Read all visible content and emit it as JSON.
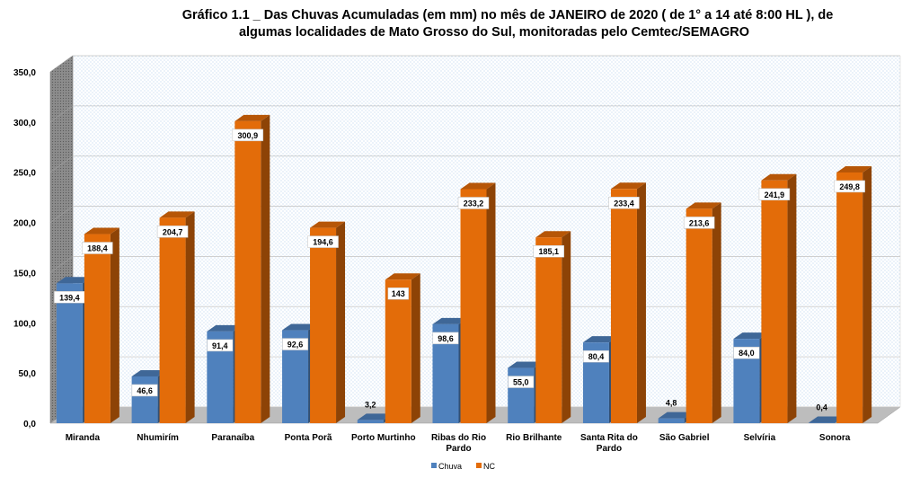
{
  "chart_data": {
    "type": "bar",
    "title_lines": [
      "Gráfico 1.1 _ Das Chuvas Acumuladas (em mm) no mês de JANEIRO de 2020 ( de 1° a  14  até  8:00 HL  ),  de",
      "algumas localidades de Mato Grosso do Sul, monitoradas pelo Cemtec/SEMAGRO"
    ],
    "categories": [
      [
        "Miranda"
      ],
      [
        "Nhumirím"
      ],
      [
        "Paranaíba"
      ],
      [
        "Ponta Porã"
      ],
      [
        "Porto Murtinho"
      ],
      [
        "Ribas do Rio",
        "Pardo"
      ],
      [
        "Rio Brilhante"
      ],
      [
        "Santa Rita do",
        "Pardo"
      ],
      [
        "São Gabriel"
      ],
      [
        "Selvíria"
      ],
      [
        "Sonora"
      ]
    ],
    "series": [
      {
        "name": "Chuva",
        "color": "#4f81bd",
        "values": [
          139.4,
          46.6,
          91.4,
          92.6,
          3.2,
          98.6,
          55.0,
          80.4,
          4.8,
          84.0,
          0.4
        ],
        "labels": [
          "139,4",
          "46,6",
          "91,4",
          "92,6",
          "3,2",
          "98,6",
          "55,0",
          "80,4",
          "4,8",
          "84,0",
          "0,4"
        ]
      },
      {
        "name": "NC",
        "color": "#e36c09",
        "values": [
          188.4,
          204.7,
          300.9,
          194.6,
          143,
          233.2,
          185.1,
          233.4,
          213.6,
          241.9,
          249.8
        ],
        "labels": [
          "188,4",
          "204,7",
          "300,9",
          "194,6",
          "143",
          "233,2",
          "185,1",
          "233,4",
          "213,6",
          "241,9",
          "249,8"
        ]
      }
    ],
    "y_ticks": [
      "0,0",
      "50,0",
      "100,0",
      "150,0",
      "200,0",
      "250,0",
      "300,0",
      "350,0"
    ],
    "ylim": [
      0,
      350
    ],
    "grid": true,
    "legend_position": "bottom"
  }
}
